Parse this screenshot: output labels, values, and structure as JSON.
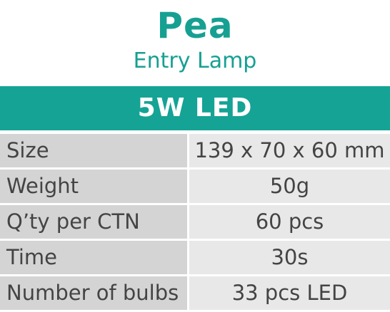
{
  "header": {
    "product_name": "Pea",
    "product_type": "Entry Lamp"
  },
  "banner": {
    "title": "5W LED"
  },
  "specs": [
    {
      "label": "Size",
      "value": "139 x 70 x 60 mm"
    },
    {
      "label": "Weight",
      "value": "50g"
    },
    {
      "label": "Q’ty per CTN",
      "value": "60 pcs"
    },
    {
      "label": "Time",
      "value": "30s"
    },
    {
      "label": "Number of bulbs",
      "value": "33 pcs LED"
    }
  ],
  "colors": {
    "brand_teal": "#15a395",
    "label_cell": "#d4d4d4",
    "value_cell": "#e8e8e8",
    "text_dark": "#444444"
  }
}
